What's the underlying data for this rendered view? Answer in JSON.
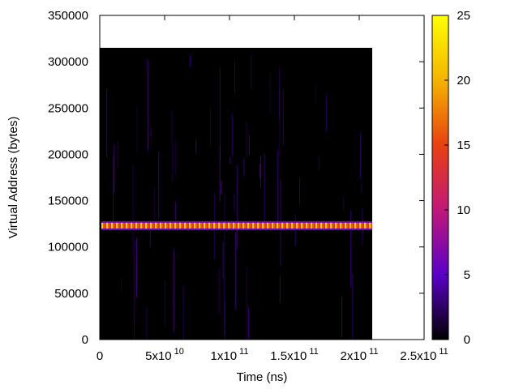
{
  "chart_data": {
    "type": "heatmap",
    "xlabel": "Time (ns)",
    "ylabel": "Virtual Address (bytes)",
    "xlim": [
      0,
      250000000000
    ],
    "ylim": [
      0,
      350000
    ],
    "data_extent": {
      "x": [
        0,
        210000000000
      ],
      "y": [
        0,
        315000
      ]
    },
    "x_ticks": [
      {
        "value": 0,
        "mantissa": "0",
        "exp": ""
      },
      {
        "value": 50000000000,
        "mantissa": "5x10",
        "exp": "10"
      },
      {
        "value": 100000000000,
        "mantissa": "1x10",
        "exp": "11"
      },
      {
        "value": 150000000000,
        "mantissa": "1.5x10",
        "exp": "11"
      },
      {
        "value": 200000000000,
        "mantissa": "2x10",
        "exp": "11"
      },
      {
        "value": 250000000000,
        "mantissa": "2.5x10",
        "exp": "11"
      }
    ],
    "y_ticks": [
      "0",
      "50000",
      "100000",
      "150000",
      "200000",
      "250000",
      "300000",
      "350000"
    ],
    "colorbar": {
      "range": [
        0,
        25
      ],
      "ticks": [
        "0",
        "5",
        "10",
        "15",
        "20",
        "25"
      ],
      "palette": [
        "#000000",
        "#5a00c8",
        "#c0187a",
        "#e84010",
        "#f4b400",
        "#ffff00"
      ]
    },
    "hot_band": {
      "y_range": [
        119000,
        127000
      ],
      "x_range": [
        0,
        210000000000
      ],
      "intensity_range": [
        14,
        22
      ],
      "edge_intensity": 6
    },
    "background_intensity": 0,
    "sparse_streaks": "low-intensity vertical streaks (≈2–6) scattered across the address range"
  }
}
